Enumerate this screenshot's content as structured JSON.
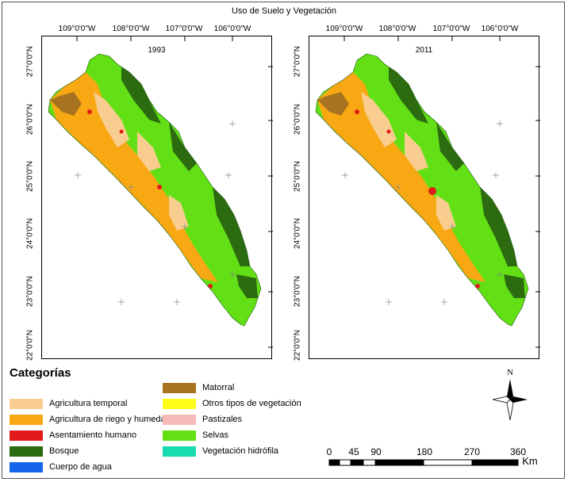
{
  "title": "Uso de Suelo y Vegetación",
  "panels": [
    {
      "year": "1993"
    },
    {
      "year": "2011"
    }
  ],
  "longitude_labels": [
    "109°0'0\"W",
    "108°0'0\"W",
    "107°0'0\"W",
    "106°0'0\"W"
  ],
  "latitude_labels": [
    "27°0'0\"N",
    "26°0'0\"N",
    "25°0'0\"N",
    "24°0'0\"N",
    "23°0'0\"N",
    "22°0'0\"N"
  ],
  "legend": {
    "title": "Categorías",
    "items": [
      {
        "label": "Agricultura  temporal",
        "color": "#f9cd8f"
      },
      {
        "label": "Agricultura de riego y humedad",
        "color": "#f8a812"
      },
      {
        "label": "Asentamiento humano",
        "color": "#e31a1c"
      },
      {
        "label": "Bosque",
        "color": "#2c6b10"
      },
      {
        "label": "Cuerpo de agua",
        "color": "#1566e8"
      },
      {
        "label": "Matorral",
        "color": "#a87320"
      },
      {
        "label": "Otros tipos de vegetación",
        "color": "#fefd1a"
      },
      {
        "label": "Pastizales",
        "color": "#f7b8b8"
      },
      {
        "label": "Selvas",
        "color": "#62e015"
      },
      {
        "label": "Vegetación hidrófila",
        "color": "#18dbb0"
      }
    ]
  },
  "scale_bar": {
    "labels": [
      "0",
      "45",
      "90",
      "180",
      "270",
      "360"
    ],
    "unit": "Km"
  },
  "north_arrow": {
    "label": "N",
    "icon": "north-arrow-icon"
  }
}
